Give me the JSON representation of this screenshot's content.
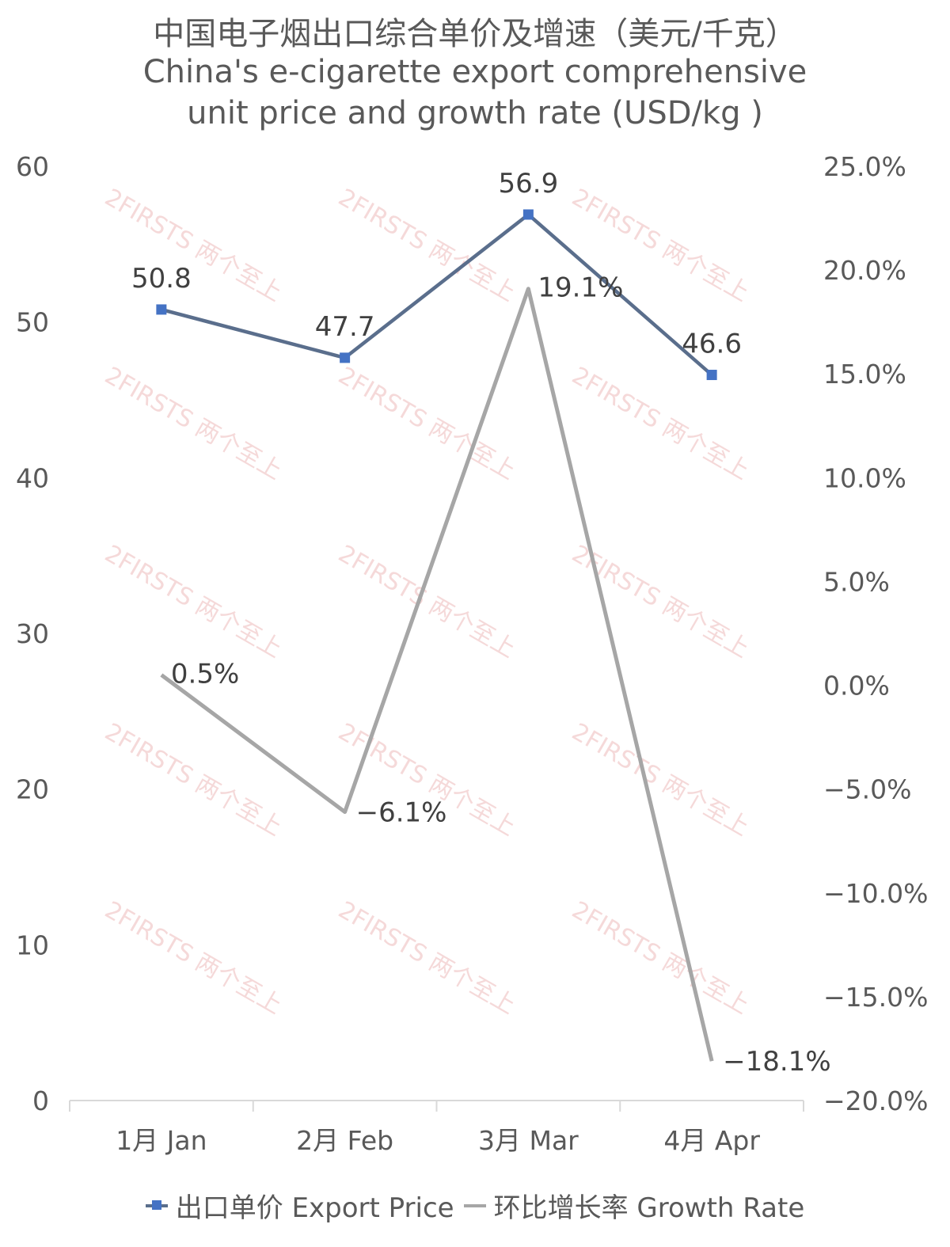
{
  "title": {
    "zh": "中国电子烟出口综合单价及增速（美元/千克）",
    "en_line1": "China's e-cigarette export comprehensive",
    "en_line2": "unit price and growth rate (USD/kg )"
  },
  "watermark": "2FIRSTS 两个至上",
  "colors": {
    "price": "#5A6E8C",
    "price_marker": "#4472C4",
    "growth": "#A6A6A6",
    "axis": "#D9D9D9"
  },
  "chart_data": {
    "type": "line",
    "categories": [
      "1月 Jan",
      "2月 Feb",
      "3月 Mar",
      "4月 Apr"
    ],
    "series": [
      {
        "name": "出口单价 Export Price",
        "axis": "left",
        "values": [
          50.8,
          47.7,
          56.9,
          46.6
        ],
        "labels": [
          "50.8",
          "47.7",
          "56.9",
          "46.6"
        ],
        "marker": "square"
      },
      {
        "name": "环比增长率 Growth Rate",
        "axis": "right",
        "values": [
          0.5,
          -6.1,
          19.1,
          -18.1
        ],
        "labels": [
          "0.5%",
          "−6.1%",
          "19.1%",
          "−18.1%"
        ],
        "marker": "none"
      }
    ],
    "y_left": {
      "min": 0,
      "max": 60,
      "ticks": [
        "0",
        "10",
        "20",
        "30",
        "40",
        "50",
        "60"
      ]
    },
    "y_right": {
      "min": -20,
      "max": 25,
      "ticks": [
        "−20.0%",
        "−15.0%",
        "−10.0%",
        "−5.0%",
        "0.0%",
        "5.0%",
        "10.0%",
        "15.0%",
        "20.0%",
        "25.0%"
      ]
    },
    "grid": false,
    "legend": "bottom"
  }
}
